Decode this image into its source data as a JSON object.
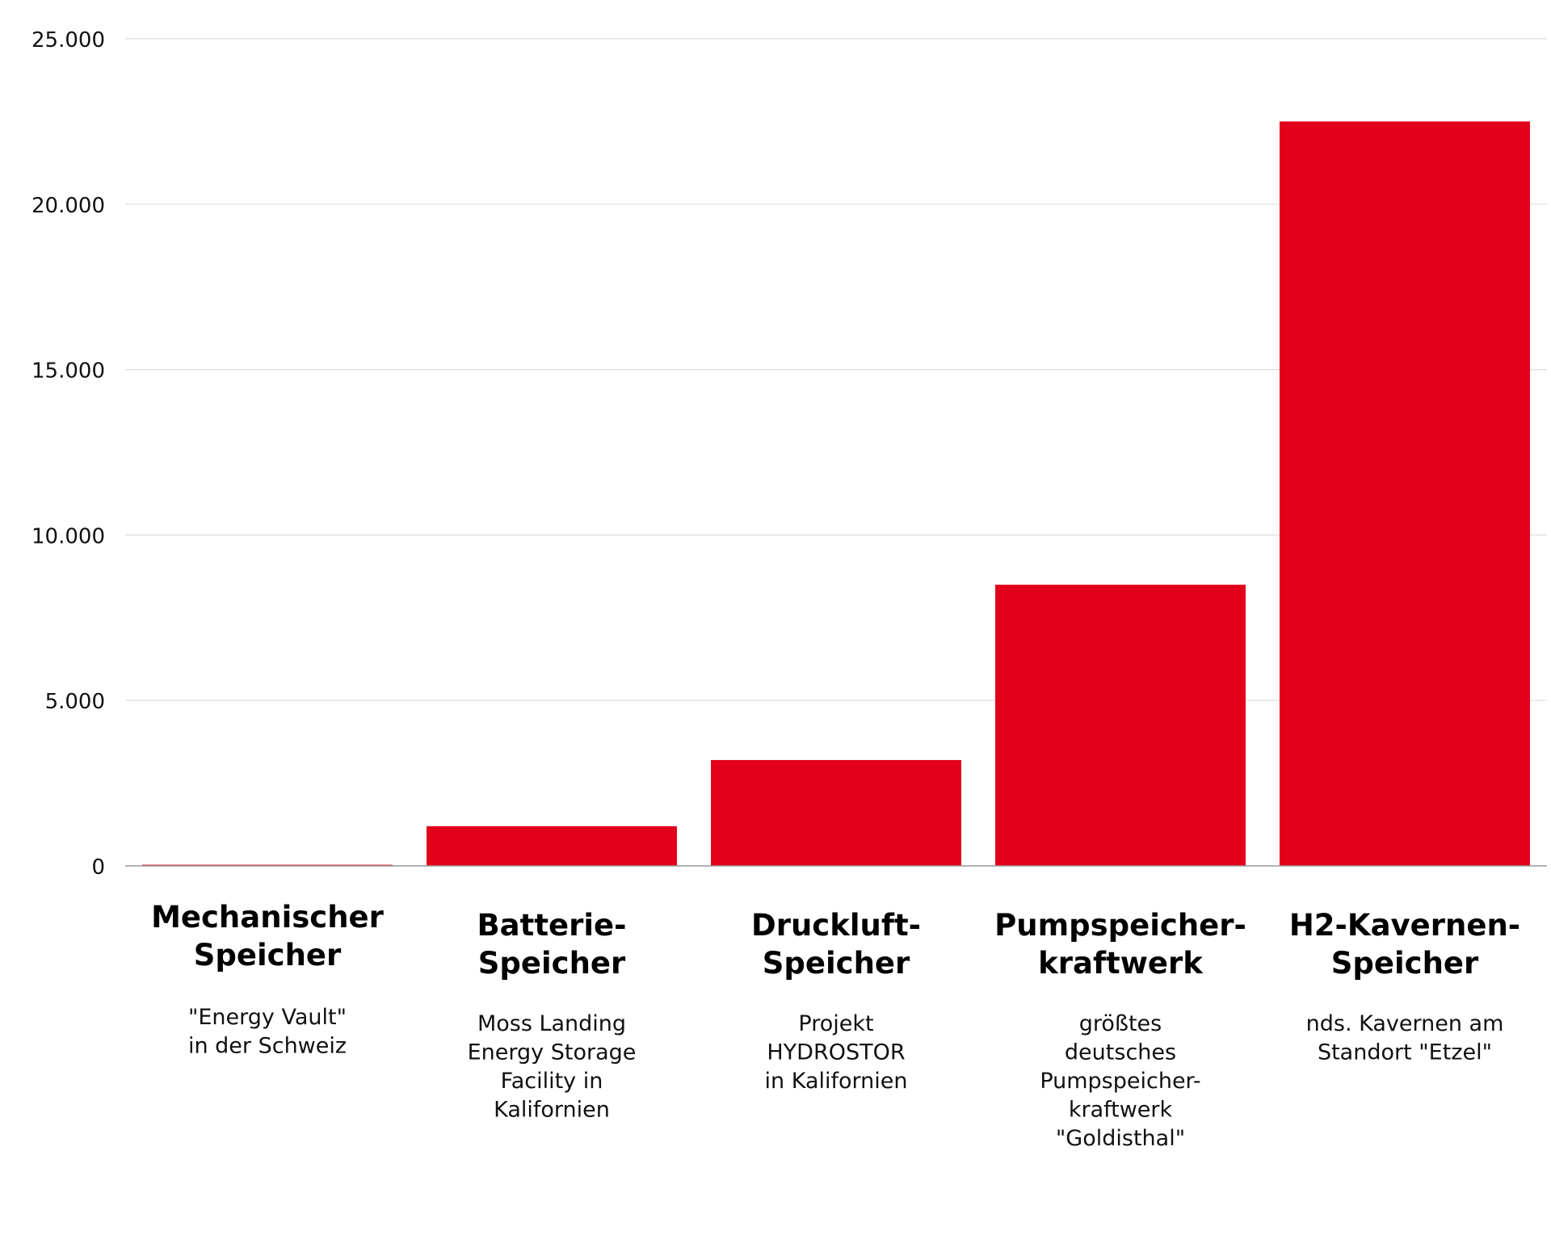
{
  "chart_data": {
    "type": "bar",
    "categories": [
      {
        "title": [
          "Mechanischer",
          "Speicher"
        ],
        "desc": [
          "\"Energy Vault\"",
          "in der Schweiz"
        ]
      },
      {
        "title": [
          "Batterie-",
          "Speicher"
        ],
        "desc": [
          "Moss Landing",
          "Energy Storage",
          "Facility in",
          "Kalifornien"
        ]
      },
      {
        "title": [
          "Druckluft-",
          "Speicher"
        ],
        "desc": [
          "Projekt",
          "HYDROSTOR",
          "in Kalifornien"
        ]
      },
      {
        "title": [
          "Pumpspeicher-",
          "kraftwerk"
        ],
        "desc": [
          "größtes",
          "deutsches",
          "Pumpspeicher-",
          "kraftwerk",
          "\"Goldisthal\""
        ]
      },
      {
        "title": [
          "H2-Kavernen-",
          "Speicher"
        ],
        "desc": [
          "nds. Kavernen am",
          "Standort \"Etzel\""
        ]
      }
    ],
    "values": [
      35,
      1200,
      3200,
      8500,
      22500
    ],
    "ylim": [
      0,
      25000
    ],
    "yticks": [
      0,
      5000,
      10000,
      15000,
      20000,
      25000
    ],
    "ytick_labels": [
      "0",
      "5.000",
      "10.000",
      "15.000",
      "20.000",
      "25.000"
    ],
    "title": "",
    "xlabel": "",
    "ylabel": "",
    "grid": true,
    "colors": {
      "bar": "#E2001A",
      "grid": "#DDDDDD",
      "axis": "#999999",
      "text": "#111111"
    }
  }
}
